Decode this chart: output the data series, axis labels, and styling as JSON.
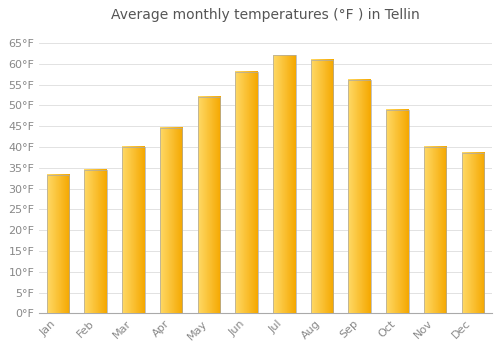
{
  "title": "Average monthly temperatures (°F ) in Tellin",
  "months": [
    "Jan",
    "Feb",
    "Mar",
    "Apr",
    "May",
    "Jun",
    "Jul",
    "Aug",
    "Sep",
    "Oct",
    "Nov",
    "Dec"
  ],
  "values": [
    33.2,
    34.5,
    40.0,
    44.5,
    52.0,
    58.0,
    62.0,
    61.0,
    56.0,
    49.0,
    40.0,
    38.5
  ],
  "bar_color_left": "#FFD966",
  "bar_color_right": "#F5A800",
  "bar_edge_color": "#AAAAAA",
  "background_color": "#FFFFFF",
  "grid_color": "#DDDDDD",
  "text_color": "#888888",
  "title_color": "#555555",
  "ylim": [
    0,
    68
  ],
  "yticks": [
    0,
    5,
    10,
    15,
    20,
    25,
    30,
    35,
    40,
    45,
    50,
    55,
    60,
    65
  ],
  "ytick_labels": [
    "0°F",
    "5°F",
    "10°F",
    "15°F",
    "20°F",
    "25°F",
    "30°F",
    "35°F",
    "40°F",
    "45°F",
    "50°F",
    "55°F",
    "60°F",
    "65°F"
  ],
  "title_fontsize": 10,
  "tick_fontsize": 8,
  "font_family": "DejaVu Sans"
}
